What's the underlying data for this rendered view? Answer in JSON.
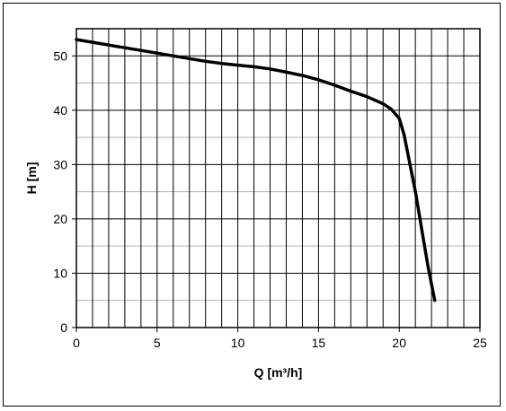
{
  "chart_data": {
    "type": "line",
    "title": "",
    "xlabel": "Q [m³/h]",
    "ylabel": "H [m]",
    "xlim": [
      0,
      25
    ],
    "ylim": [
      0,
      55
    ],
    "x_ticks": [
      0,
      5,
      10,
      15,
      20,
      25
    ],
    "y_ticks": [
      0,
      10,
      20,
      30,
      40,
      50
    ],
    "x_minor_step": 1,
    "y_minor_step": 5,
    "grid": true,
    "series_color": "#000000",
    "series": [
      {
        "x": [
          0,
          1,
          2,
          3,
          4,
          5,
          6,
          7,
          8,
          9,
          10,
          11,
          12,
          13,
          14,
          15,
          16,
          17,
          18,
          19,
          19.5,
          20,
          20.3,
          20.6,
          21,
          21.4,
          21.8,
          22.2
        ],
        "y": [
          53,
          52.5,
          52,
          51.5,
          51,
          50.5,
          50,
          49.5,
          49,
          48.6,
          48.3,
          48,
          47.6,
          47,
          46.4,
          45.6,
          44.6,
          43.5,
          42.5,
          41.2,
          40.2,
          38.5,
          35.5,
          31,
          25,
          18,
          11,
          5
        ]
      }
    ]
  }
}
